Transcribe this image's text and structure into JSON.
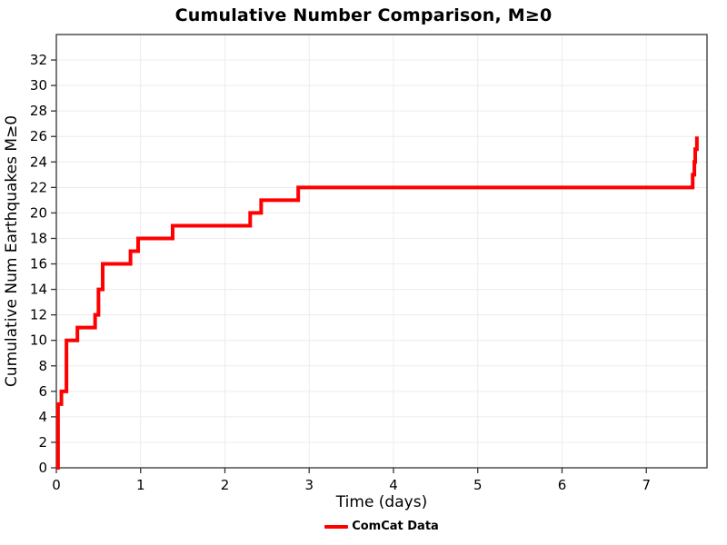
{
  "page": {
    "background": "#ffffff"
  },
  "chart_data": {
    "type": "line",
    "style": "step",
    "title": "Cumulative Number Comparison, M≥0",
    "xlabel": "Time (days)",
    "ylabel": "Cumulative Num Earthquakes M≥0",
    "xlim": [
      0,
      7.72
    ],
    "ylim": [
      0,
      34
    ],
    "xticks": [
      0,
      1,
      2,
      3,
      4,
      5,
      6,
      7
    ],
    "yticks": [
      0,
      2,
      4,
      6,
      8,
      10,
      12,
      14,
      16,
      18,
      20,
      22,
      24,
      26,
      28,
      30,
      32
    ],
    "grid": true,
    "grid_color": "#ececec",
    "box_color": "#333333",
    "legend": {
      "position": "bottom-center",
      "entries": [
        {
          "label": "ComCat Data",
          "color": "#ff0000"
        }
      ]
    },
    "series": [
      {
        "name": "ComCat Data",
        "color": "#ff0000",
        "line_width": 4,
        "step_points": [
          [
            0.0,
            0
          ],
          [
            0.02,
            5
          ],
          [
            0.06,
            6
          ],
          [
            0.12,
            10
          ],
          [
            0.25,
            11
          ],
          [
            0.46,
            12
          ],
          [
            0.5,
            14
          ],
          [
            0.55,
            16
          ],
          [
            0.88,
            17
          ],
          [
            0.97,
            18
          ],
          [
            1.38,
            19
          ],
          [
            2.3,
            20
          ],
          [
            2.43,
            21
          ],
          [
            2.87,
            22
          ],
          [
            7.55,
            23
          ],
          [
            7.57,
            24
          ],
          [
            7.58,
            25
          ],
          [
            7.6,
            26
          ]
        ]
      }
    ]
  }
}
